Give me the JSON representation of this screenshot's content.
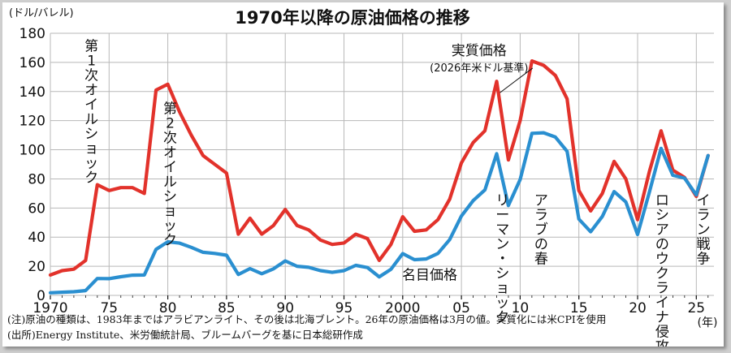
{
  "chart_data": {
    "type": "line",
    "title": "1970年以降の原油価格の推移",
    "ylabel": "(ドル/バレル)",
    "xlabel": "(年)",
    "ylim": [
      0,
      180
    ],
    "xlim": [
      1970,
      2026.5
    ],
    "y_ticks": [
      0,
      20,
      40,
      60,
      80,
      100,
      120,
      140,
      160,
      180
    ],
    "x_ticks": [
      {
        "value": 1970,
        "label": "1970"
      },
      {
        "value": 1975,
        "label": "75"
      },
      {
        "value": 1980,
        "label": "80"
      },
      {
        "value": 1985,
        "label": "85"
      },
      {
        "value": 1990,
        "label": "90"
      },
      {
        "value": 1995,
        "label": "95"
      },
      {
        "value": 2000,
        "label": "2000"
      },
      {
        "value": 2005,
        "label": "05"
      },
      {
        "value": 2010,
        "label": "10"
      },
      {
        "value": 2015,
        "label": "15"
      },
      {
        "value": 2020,
        "label": "20"
      },
      {
        "value": 2025,
        "label": "25"
      }
    ],
    "grid": true,
    "x": [
      1970,
      1971,
      1972,
      1973,
      1974,
      1975,
      1976,
      1977,
      1978,
      1979,
      1980,
      1981,
      1982,
      1983,
      1984,
      1985,
      1986,
      1987,
      1988,
      1989,
      1990,
      1991,
      1992,
      1993,
      1994,
      1995,
      1996,
      1997,
      1998,
      1999,
      2000,
      2001,
      2002,
      2003,
      2004,
      2005,
      2006,
      2007,
      2008,
      2009,
      2010,
      2011,
      2012,
      2013,
      2014,
      2015,
      2016,
      2017,
      2018,
      2019,
      2020,
      2021,
      2022,
      2023,
      2024,
      2025,
      2026
    ],
    "series": [
      {
        "name": "実質価格",
        "color": "#e2322b",
        "values": [
          14,
          17,
          18,
          24,
          76,
          72,
          74,
          74,
          70,
          141,
          145,
          126,
          110,
          96,
          90,
          84,
          42,
          53,
          42,
          48,
          59,
          48,
          45,
          38,
          35,
          36,
          42,
          39,
          24,
          35,
          54,
          44,
          45,
          52,
          66,
          91,
          105,
          113,
          147,
          93,
          120,
          161,
          158,
          151,
          135,
          72,
          58,
          70,
          92,
          80,
          52,
          85,
          113,
          86,
          81,
          68,
          96
        ]
      },
      {
        "name": "名目価格",
        "color": "#2a8fd0",
        "values": [
          1.8,
          2.2,
          2.5,
          3.3,
          11.6,
          11.5,
          12.8,
          13.9,
          14.0,
          31.6,
          36.8,
          35.9,
          33.0,
          29.6,
          28.8,
          27.6,
          14.4,
          18.4,
          14.9,
          18.2,
          23.7,
          20.0,
          19.3,
          17.0,
          15.8,
          17.0,
          20.6,
          19.1,
          12.7,
          17.9,
          28.7,
          24.5,
          25.0,
          28.8,
          38.3,
          54.5,
          65.1,
          72.4,
          97.3,
          61.7,
          79.5,
          111.3,
          111.7,
          108.7,
          98.9,
          52.4,
          43.7,
          54.2,
          71.3,
          64.2,
          41.8,
          70.9,
          101.0,
          82.5,
          80.5,
          69.0,
          96.0
        ]
      }
    ],
    "annotations": [
      {
        "id": "oil-shock-1",
        "text": "第1次オイルショック",
        "x": 1973.5,
        "y": 168
      },
      {
        "id": "oil-shock-2",
        "text": "第2次オイルショック",
        "x": 1980.2,
        "y": 125
      },
      {
        "id": "real-price-label",
        "text": "実質価格",
        "sub": "(2026年米ドル基準)",
        "x": 2006.5,
        "y": 165
      },
      {
        "id": "nominal-price-label",
        "text": "名目価格",
        "x": 2002.3,
        "y": 11
      },
      {
        "id": "lehman",
        "text": "リーマン・ショック",
        "x": 2008.5,
        "y": 62
      },
      {
        "id": "arab-spring",
        "text": "アラブの春",
        "x": 2011.8,
        "y": 62
      },
      {
        "id": "ukraine",
        "text": "ロシアのウクライナ侵攻",
        "x": 2022.1,
        "y": 62
      },
      {
        "id": "iran-war",
        "text": "イラン戦争",
        "x": 2025.6,
        "y": 62
      }
    ]
  },
  "notes": {
    "line1": "(注)原油の種類は、1983年まではアラビアンライト、その後は北海ブレント。26年の原油価格は3月の値。実質化には米CPIを使用",
    "line2": "(出所)Energy Institute、米労働統計局、ブルームバーグを基に日本総研作成"
  }
}
